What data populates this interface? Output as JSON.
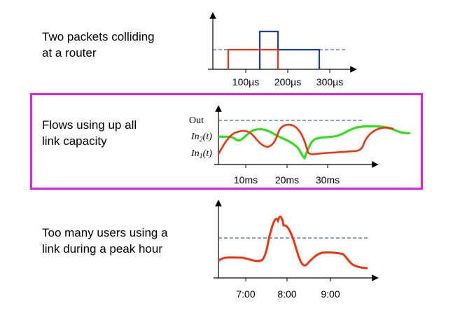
{
  "panels": [
    {
      "caption_lines": [
        "Two packets colliding",
        "at a router"
      ],
      "ticks": [
        "100µs",
        "200µs",
        "300µs"
      ]
    },
    {
      "caption_lines": [
        "Flows using up all",
        "link capacity"
      ],
      "ticks": [
        "10ms",
        "20ms",
        "30ms"
      ],
      "y_labels": {
        "out": "Out",
        "in2_prefix": "In",
        "in2_sub": "2",
        "in2_suffix": "(t)",
        "in1_prefix": "In",
        "in1_sub": "1",
        "in1_suffix": "(t)"
      }
    },
    {
      "caption_lines": [
        "Too many users using a",
        "link during a peak hour"
      ],
      "ticks": [
        "7:00",
        "8:00",
        "9:00"
      ]
    }
  ],
  "colors": {
    "packet_blue": "#1c3f9e",
    "packet_red": "#e83418",
    "flow_green": "#33dd22",
    "flow_red": "#ee3311",
    "capacity_line": "#1c3f9e",
    "frame": "#e61ee6"
  }
}
